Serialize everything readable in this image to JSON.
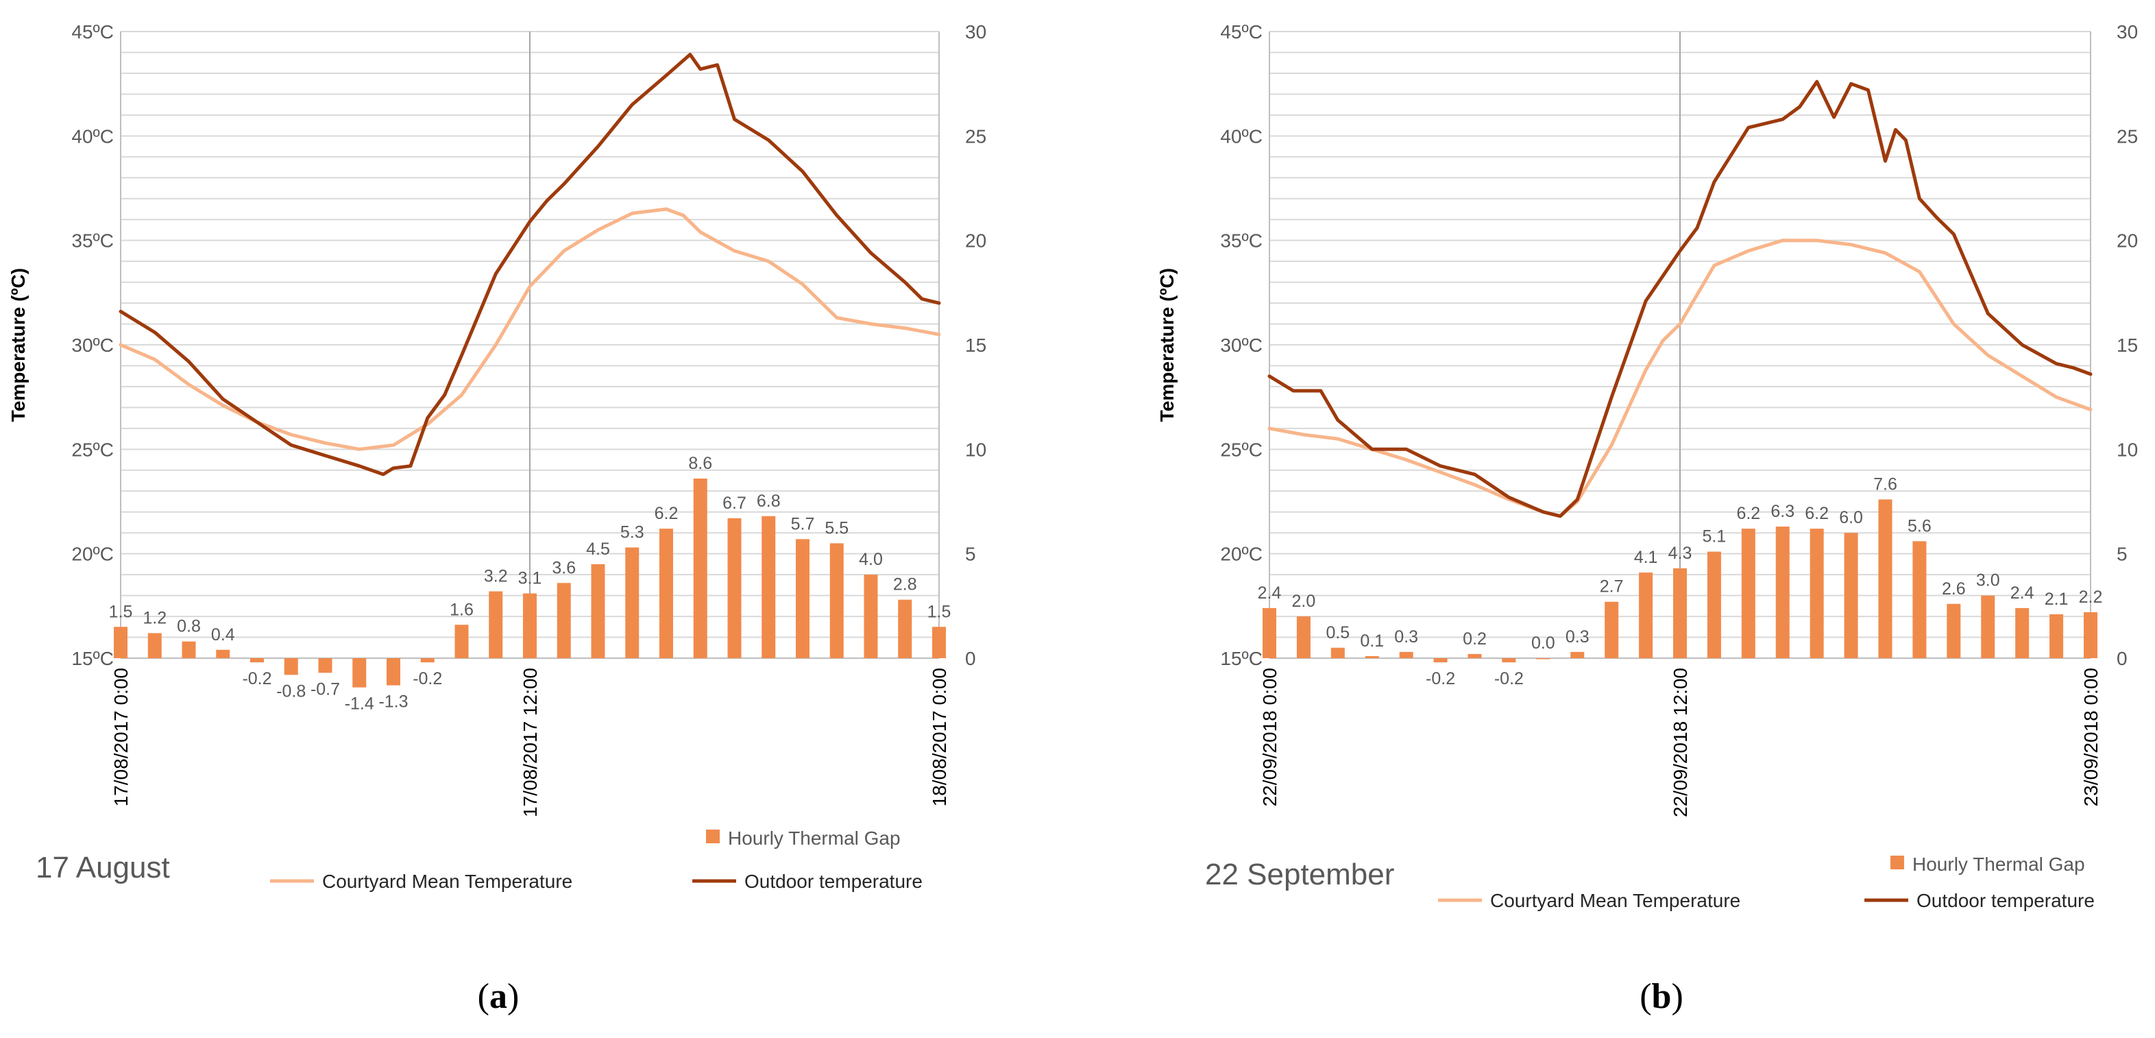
{
  "figure": {
    "colors": {
      "courtyard": "#F8B58A",
      "outdoor": "#9E3A0C",
      "bars": "#F08A4B",
      "grid": "#D9D9D9",
      "axis": "#BFBFBF",
      "text": "#595959"
    }
  },
  "chart_data": [
    {
      "type": "line+bar",
      "panel_label": "a",
      "caption": "17 August",
      "ylabel": "Temperature (ºC)",
      "y_left": {
        "min": 15,
        "max": 45,
        "major_step": 5,
        "tick_labels": [
          "15ºC",
          "20ºC",
          "25ºC",
          "30ºC",
          "35ºC",
          "40ºC",
          "45ºC"
        ]
      },
      "y_right": {
        "min": 0,
        "max": 30,
        "major_step": 5,
        "tick_labels": [
          "0",
          "5",
          "10",
          "15",
          "20",
          "25",
          "30"
        ]
      },
      "x_range_hours": [
        0,
        24
      ],
      "x_tick_hours": [
        0,
        12,
        24
      ],
      "x_tick_labels": [
        "17/08/2017 0:00",
        "17/08/2017 12:00",
        "18/08/2017 0:00"
      ],
      "legend": {
        "bars": "Hourly Thermal Gap",
        "courtyard": "Courtyard Mean Temperature",
        "outdoor": "Outdoor temperature"
      },
      "bar_values": [
        1.5,
        1.2,
        0.8,
        0.4,
        -0.2,
        -0.8,
        -0.7,
        -1.4,
        -1.3,
        -0.2,
        1.6,
        3.2,
        3.1,
        3.6,
        4.5,
        5.3,
        6.2,
        8.6,
        6.7,
        6.8,
        5.7,
        5.5,
        4.0,
        2.8,
        1.5
      ],
      "bar_labels": [
        "1.5",
        "1.2",
        "0.8",
        "0.4",
        "-0.2",
        "-0.8",
        "-0.7",
        "-1.4",
        "-1.3",
        "-0.2",
        "1.6",
        "3.2",
        "3.1",
        "3.6",
        "4.5",
        "5.3",
        "6.2",
        "8.6",
        "6.7",
        "6.8",
        "5.7",
        "5.5",
        "4.0",
        "2.8",
        "1.5"
      ],
      "courtyard_series": {
        "x": [
          0,
          1,
          2,
          3,
          4,
          5,
          6,
          7,
          8,
          9,
          10,
          11,
          12,
          13,
          14,
          15,
          16,
          16.5,
          17,
          18,
          19,
          20,
          21,
          22,
          23,
          24
        ],
        "y": [
          30.0,
          29.3,
          28.1,
          27.1,
          26.3,
          25.7,
          25.3,
          25.0,
          25.2,
          26.2,
          27.6,
          30.0,
          32.8,
          34.5,
          35.5,
          36.3,
          36.5,
          36.2,
          35.4,
          34.5,
          34.0,
          32.9,
          31.3,
          31.0,
          30.8,
          30.5
        ]
      },
      "outdoor_series": {
        "x": [
          0,
          1,
          2,
          3,
          4,
          5,
          6,
          7,
          7.7,
          8,
          8.5,
          9,
          9.5,
          10,
          11,
          12,
          12.5,
          13,
          14,
          15,
          16,
          16.7,
          17,
          17.5,
          18,
          19,
          20,
          21,
          22,
          23,
          23.5,
          24
        ],
        "y": [
          31.6,
          30.6,
          29.2,
          27.4,
          26.3,
          25.2,
          24.7,
          24.2,
          23.8,
          24.1,
          24.2,
          26.5,
          27.6,
          29.5,
          33.4,
          35.9,
          36.9,
          37.7,
          39.5,
          41.5,
          42.9,
          43.9,
          43.2,
          43.4,
          40.8,
          39.8,
          38.3,
          36.2,
          34.4,
          33.0,
          32.2,
          32.0
        ]
      }
    },
    {
      "type": "line+bar",
      "panel_label": "b",
      "caption": "22 September",
      "ylabel": "Temperature (ºC)",
      "y_left": {
        "min": 15,
        "max": 45,
        "major_step": 5,
        "tick_labels": [
          "15ºC",
          "20ºC",
          "25ºC",
          "30ºC",
          "35ºC",
          "40ºC",
          "45ºC"
        ]
      },
      "y_right": {
        "min": 0,
        "max": 30,
        "major_step": 5,
        "tick_labels": [
          "0",
          "5",
          "10",
          "15",
          "20",
          "25",
          "30"
        ]
      },
      "x_range_hours": [
        0,
        24
      ],
      "x_tick_hours": [
        0,
        12,
        24
      ],
      "x_tick_labels": [
        "22/09/2018 0:00",
        "22/09/2018 12:00",
        "23/09/2018 0:00"
      ],
      "legend": {
        "bars": "Hourly Thermal Gap",
        "courtyard": "Courtyard Mean Temperature",
        "outdoor": "Outdoor temperature"
      },
      "bar_values": [
        2.4,
        2.0,
        0.5,
        0.1,
        0.3,
        -0.2,
        0.2,
        -0.2,
        0.0,
        0.3,
        2.7,
        4.1,
        4.3,
        5.1,
        6.2,
        6.3,
        6.2,
        6.0,
        7.6,
        5.6,
        2.6,
        3.0,
        2.4,
        2.1,
        2.2
      ],
      "bar_labels": [
        "2.4",
        "2.0",
        "0.5",
        "0.1",
        "0.3",
        "-0.2",
        "0.2",
        "-0.2",
        "0.0",
        "0.3",
        "2.7",
        "4.1",
        "4.3",
        "5.1",
        "6.2",
        "6.3",
        "6.2",
        "6.0",
        "7.6",
        "5.6",
        "2.6",
        "3.0",
        "2.4",
        "2.1",
        "2.2"
      ],
      "courtyard_series": {
        "x": [
          0,
          1,
          2,
          3,
          4,
          5,
          6,
          7,
          8,
          8.5,
          9,
          10,
          11,
          11.5,
          12,
          13,
          14,
          15,
          16,
          17,
          18,
          19,
          20,
          21,
          22,
          23,
          24
        ],
        "y": [
          26.0,
          25.7,
          25.5,
          25.0,
          24.5,
          23.9,
          23.3,
          22.6,
          22.0,
          21.8,
          22.5,
          25.2,
          28.8,
          30.2,
          31.0,
          33.8,
          34.5,
          35.0,
          35.0,
          34.8,
          34.4,
          33.5,
          31.0,
          29.5,
          28.5,
          27.5,
          26.9
        ]
      },
      "outdoor_series": {
        "x": [
          0,
          0.7,
          1.5,
          2,
          3,
          4,
          5,
          6,
          7,
          8,
          8.5,
          9,
          10,
          11,
          12,
          12.5,
          13,
          14,
          15,
          15.5,
          16,
          16.5,
          17,
          17.5,
          18,
          18.3,
          18.6,
          19,
          19.5,
          20,
          21,
          22,
          23,
          23.5,
          24
        ],
        "y": [
          28.5,
          27.8,
          27.8,
          26.4,
          25.0,
          25.0,
          24.2,
          23.8,
          22.7,
          22.0,
          21.8,
          22.6,
          27.5,
          32.1,
          34.5,
          35.6,
          37.8,
          40.4,
          40.8,
          41.4,
          42.6,
          40.9,
          42.5,
          42.2,
          38.8,
          40.3,
          39.8,
          37.0,
          36.1,
          35.3,
          31.5,
          30.0,
          29.1,
          28.9,
          28.6
        ]
      }
    }
  ]
}
